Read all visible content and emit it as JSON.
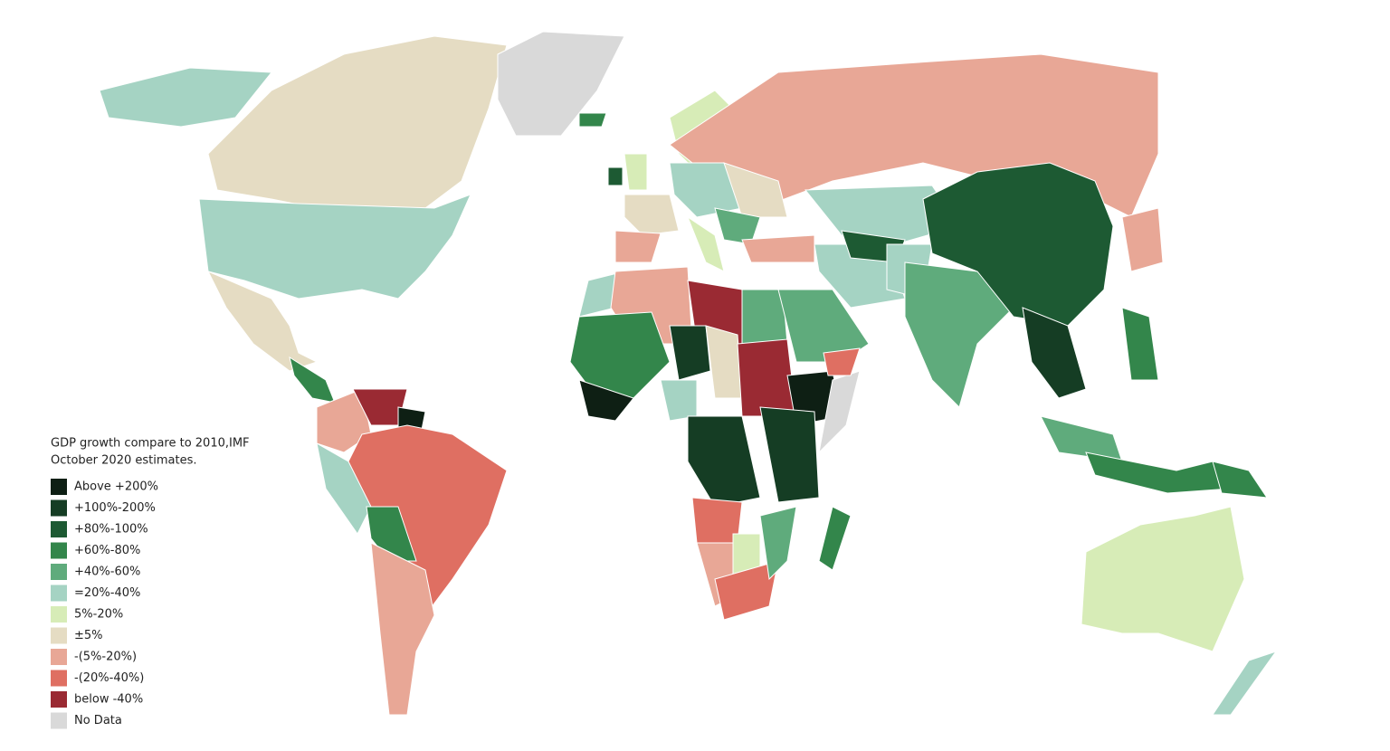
{
  "legend": {
    "title": [
      "GDP growth compare to 2010,IMF",
      "October 2020 estimates."
    ],
    "items": [
      {
        "label": "Above +200%",
        "color": "#0e1f14"
      },
      {
        "label": "+100%-200%",
        "color": "#153d24"
      },
      {
        "label": "+80%-100%",
        "color": "#1d5a33"
      },
      {
        "label": "+60%-80%",
        "color": "#33864b"
      },
      {
        "label": "+40%-60%",
        "color": "#5fab7c"
      },
      {
        "label": "=20%-40%",
        "color": "#a5d3c3"
      },
      {
        "label": "5%-20%",
        "color": "#d7ecb7"
      },
      {
        "label": "±5%",
        "color": "#e5dcc3"
      },
      {
        "label": "-(5%-20%)",
        "color": "#e8a796"
      },
      {
        "label": "-(20%-40%)",
        "color": "#df6f62"
      },
      {
        "label": "below -40%",
        "color": "#9a2a33"
      },
      {
        "label": "No Data",
        "color": "#d9d9d9"
      }
    ]
  }
}
